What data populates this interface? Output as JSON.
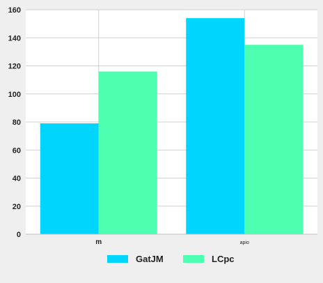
{
  "chart_data": {
    "type": "bar",
    "categories": [
      "m",
      "apio"
    ],
    "series": [
      {
        "name": "GatJM",
        "values": [
          79,
          154
        ],
        "color": "#00d5ff"
      },
      {
        "name": "LCpc",
        "values": [
          116,
          135
        ],
        "color": "#4dffb0"
      }
    ],
    "ylim": [
      0,
      160
    ],
    "yticks": [
      0,
      20,
      40,
      60,
      80,
      100,
      120,
      140,
      160
    ],
    "grid": true,
    "legend_position": "bottom"
  }
}
